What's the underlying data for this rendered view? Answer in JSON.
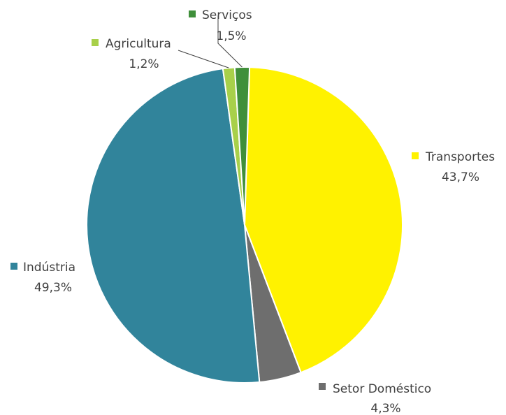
{
  "chart_data": {
    "type": "pie",
    "title": "",
    "slices": [
      {
        "name": "Transportes",
        "value": 43.7,
        "label": "43,7%",
        "color": "#FFF200"
      },
      {
        "name": "Setor Doméstico",
        "value": 4.3,
        "label": "4,3%",
        "color": "#6E6E6E"
      },
      {
        "name": "Indústria",
        "value": 49.3,
        "label": "49,3%",
        "color": "#31849B"
      },
      {
        "name": "Agricultura",
        "value": 1.2,
        "label": "1,2%",
        "color": "#A8D04A"
      },
      {
        "name": "Serviços",
        "value": 1.5,
        "label": "1,5%",
        "color": "#3F8F3A"
      }
    ],
    "legend": "labels next to slices",
    "leader_lines": [
      "Agricultura",
      "Serviços"
    ]
  }
}
